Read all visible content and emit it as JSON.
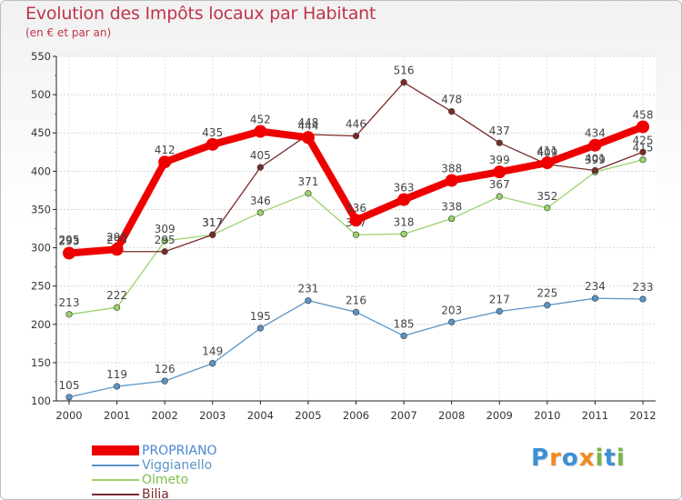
{
  "title": "Evolution des Impôts locaux par Habitant",
  "subtitle": "(en € et par an)",
  "brand": {
    "letters": [
      "P",
      "r",
      "o",
      "x",
      "i",
      "t",
      "i"
    ],
    "colors": [
      "#3d8fd6",
      "#f08b1d",
      "#3d8fd6",
      "#f08b1d",
      "#7ab648",
      "#3d8fd6",
      "#7ab648"
    ]
  },
  "chart_data": {
    "type": "line",
    "x": [
      "2000",
      "2001",
      "2002",
      "2003",
      "2004",
      "2005",
      "2006",
      "2007",
      "2008",
      "2009",
      "2010",
      "2011",
      "2012"
    ],
    "ylim": [
      100,
      550
    ],
    "yticks": [
      "100",
      "150",
      "200",
      "250",
      "300",
      "350",
      "400",
      "450",
      "500",
      "550"
    ],
    "grid": true,
    "legend": "bottom-left",
    "series": [
      {
        "name": "Viggianello",
        "color": "#5b94c6",
        "values": [
          105,
          119,
          126,
          149,
          195,
          231,
          216,
          185,
          203,
          217,
          225,
          234,
          233
        ],
        "labels": [
          "105",
          "119",
          "126",
          "149",
          "195",
          "231",
          "216",
          "185",
          "203",
          "217",
          "225",
          "234",
          "233"
        ]
      },
      {
        "name": "Olmeto",
        "color": "#99d36c",
        "values": [
          213,
          222,
          309,
          317,
          346,
          371,
          317,
          318,
          338,
          367,
          352,
          399,
          415
        ],
        "labels": [
          "213",
          "222",
          "309",
          "317",
          "346",
          "371",
          "317",
          "318",
          "338",
          "367",
          "352",
          "399",
          "415"
        ]
      },
      {
        "name": "Bilia",
        "color": "#7a2a2a",
        "values": [
          295,
          295,
          295,
          317,
          405,
          448,
          446,
          516,
          478,
          437,
          409,
          401,
          425
        ],
        "labels": [
          "295",
          "295",
          "295",
          "317",
          "405",
          "448",
          "446",
          "516",
          "478",
          "437",
          "409",
          "401",
          "425"
        ]
      },
      {
        "name": "PROPRIANO",
        "color": "#ee0000",
        "values": [
          293,
          298,
          412,
          435,
          452,
          444,
          336,
          363,
          388,
          399,
          411,
          434,
          458
        ],
        "labels": [
          "293",
          "298",
          "412",
          "435",
          "452",
          "444",
          "336",
          "363",
          "388",
          "399",
          "411",
          "434",
          "458"
        ]
      }
    ]
  }
}
